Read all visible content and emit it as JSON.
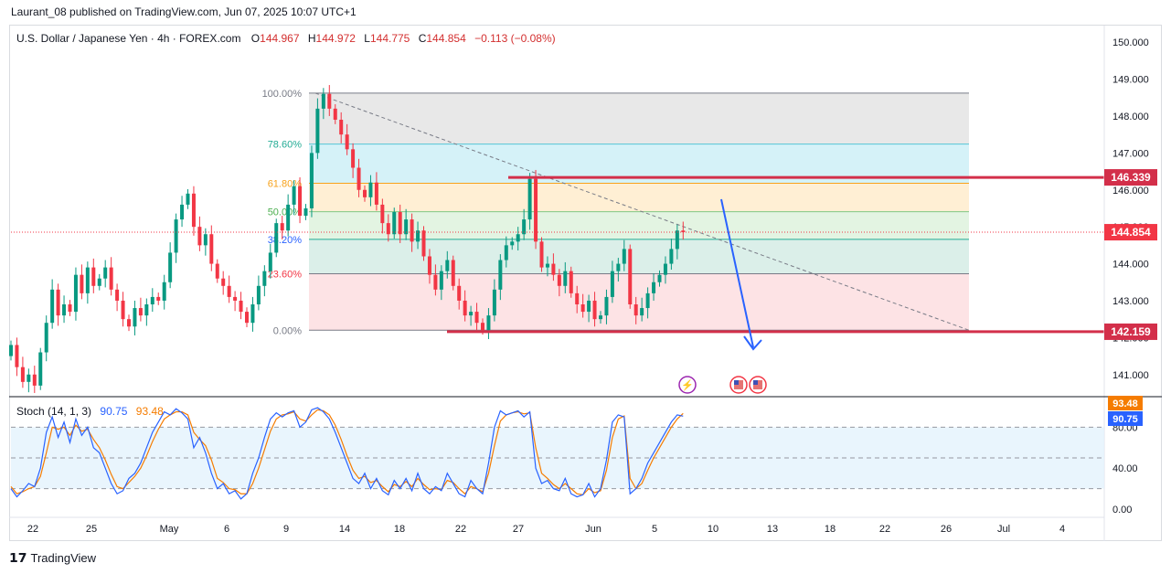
{
  "header": {
    "published": "Laurant_08 published on TradingView.com, Jun 07, 2025 10:07 UTC+1"
  },
  "legend": {
    "symbol": "U.S. Dollar / Japanese Yen · 4h · FOREX.com",
    "o_label": "O",
    "o_value": "144.967",
    "h_label": "H",
    "h_value": "144.972",
    "l_label": "L",
    "l_value": "144.775",
    "c_label": "C",
    "c_value": "144.854",
    "change": "−0.113 (−0.08%)"
  },
  "stoch": {
    "label": "Stoch (14, 1, 3)",
    "k_value": "90.75",
    "d_value": "93.48"
  },
  "footer": {
    "brand": "TradingView"
  },
  "colors": {
    "up": "#089981",
    "down": "#f23645",
    "level_line": "#d32f4a",
    "k_line": "#2962ff",
    "d_line": "#f57c00",
    "arrow": "#2962ff"
  },
  "chart_data": {
    "type": "candlestick",
    "price_axis": {
      "ticks": [
        "150.000",
        "149.000",
        "148.000",
        "147.000",
        "146.000",
        "145.000",
        "144.000",
        "143.000",
        "142.000",
        "141.000"
      ],
      "ylim": [
        140.4,
        150.4
      ]
    },
    "x_ticks": [
      "22",
      "25",
      "May",
      "6",
      "9",
      "14",
      "18",
      "22",
      "27",
      "Jun",
      "5",
      "10",
      "13",
      "18",
      "22",
      "26",
      "Jul",
      "4"
    ],
    "fib_levels": [
      {
        "label": "100.00%",
        "price": 148.62,
        "color": "#e0e0e0"
      },
      {
        "label": "78.60%",
        "price": 147.24,
        "color": "#c7eef5"
      },
      {
        "label": "61.80%",
        "price": 146.18,
        "color": "#ffe9c6"
      },
      {
        "label": "50.00%",
        "price": 145.41,
        "color": "#d9f0d8"
      },
      {
        "label": "38.20%",
        "price": 144.66,
        "color": "#cfe9e2"
      },
      {
        "label": "23.60%",
        "price": 143.73,
        "color": "#fcd9dc"
      },
      {
        "label": "0.00%",
        "price": 142.2,
        "color": "#fcd9dc"
      }
    ],
    "levels": [
      {
        "label": "146.339",
        "price": 146.339
      },
      {
        "label": "142.159",
        "price": 142.159
      }
    ],
    "current_price": {
      "label": "144.854",
      "price": 144.854
    },
    "stoch_axis": {
      "ticks": [
        "80.00",
        "40.00",
        "0.00"
      ],
      "ylim": [
        -8,
        108
      ],
      "bands": [
        80,
        50,
        20
      ]
    },
    "stoch_badges": [
      {
        "label": "93.48",
        "value": 93.48,
        "color": "#f57c00"
      },
      {
        "label": "90.75",
        "value": 90.75,
        "color": "#2962ff"
      }
    ],
    "closes": [
      141.8,
      141.2,
      140.8,
      141.0,
      140.7,
      141.6,
      142.4,
      143.3,
      142.6,
      142.9,
      142.7,
      143.7,
      143.2,
      143.9,
      143.4,
      143.6,
      143.9,
      143.3,
      143.0,
      142.5,
      142.3,
      142.8,
      142.6,
      142.9,
      143.1,
      143.0,
      143.5,
      144.3,
      145.2,
      145.6,
      145.9,
      145.0,
      144.5,
      144.8,
      144.0,
      143.6,
      143.4,
      143.1,
      143.0,
      142.7,
      142.4,
      142.9,
      143.4,
      143.8,
      144.3,
      145.1,
      144.9,
      145.6,
      146.1,
      145.3,
      145.5,
      147.0,
      148.2,
      148.6,
      148.2,
      147.9,
      147.5,
      147.1,
      146.6,
      146.0,
      145.8,
      146.2,
      145.6,
      145.1,
      144.8,
      145.4,
      144.8,
      145.2,
      144.6,
      144.9,
      144.2,
      143.7,
      143.3,
      143.8,
      144.1,
      143.4,
      143.0,
      142.6,
      142.7,
      142.4,
      142.2,
      142.6,
      143.3,
      144.1,
      144.5,
      144.6,
      144.8,
      145.2,
      146.3,
      144.6,
      143.9,
      144.0,
      143.7,
      143.4,
      143.8,
      143.2,
      142.9,
      142.7,
      143.0,
      142.5,
      142.6,
      143.1,
      143.8,
      144.0,
      144.4,
      142.9,
      142.6,
      142.8,
      143.2,
      143.5,
      143.7,
      144.0,
      144.4,
      144.9,
      144.854
    ],
    "stoch_k": [
      20,
      12,
      18,
      25,
      22,
      40,
      75,
      90,
      70,
      85,
      65,
      88,
      72,
      80,
      60,
      55,
      40,
      25,
      15,
      18,
      30,
      35,
      45,
      60,
      75,
      85,
      95,
      92,
      98,
      94,
      88,
      60,
      70,
      55,
      35,
      20,
      25,
      15,
      18,
      10,
      15,
      35,
      50,
      70,
      88,
      94,
      90,
      94,
      96,
      80,
      85,
      97,
      99,
      95,
      88,
      75,
      60,
      45,
      30,
      25,
      35,
      20,
      30,
      18,
      14,
      28,
      20,
      30,
      18,
      35,
      20,
      15,
      22,
      18,
      35,
      25,
      15,
      12,
      28,
      20,
      15,
      45,
      80,
      96,
      92,
      94,
      96,
      90,
      95,
      40,
      25,
      28,
      20,
      18,
      30,
      15,
      12,
      14,
      25,
      12,
      20,
      48,
      85,
      92,
      90,
      15,
      20,
      30,
      45,
      55,
      65,
      75,
      85,
      92,
      90.75
    ],
    "stoch_d": [
      22,
      15,
      17,
      20,
      22,
      32,
      55,
      80,
      78,
      80,
      72,
      82,
      76,
      78,
      68,
      60,
      48,
      34,
      22,
      20,
      26,
      32,
      40,
      52,
      66,
      78,
      88,
      92,
      95,
      95,
      92,
      75,
      68,
      62,
      48,
      30,
      26,
      20,
      19,
      15,
      15,
      25,
      40,
      58,
      76,
      88,
      92,
      93,
      95,
      88,
      86,
      92,
      97,
      96,
      92,
      82,
      68,
      52,
      38,
      30,
      32,
      26,
      28,
      22,
      17,
      24,
      22,
      27,
      22,
      30,
      24,
      19,
      20,
      19,
      28,
      26,
      20,
      15,
      22,
      20,
      17,
      35,
      62,
      86,
      92,
      94,
      95,
      93,
      94,
      60,
      35,
      30,
      24,
      20,
      25,
      20,
      15,
      14,
      20,
      16,
      18,
      38,
      70,
      88,
      91,
      30,
      20,
      25,
      38,
      50,
      60,
      70,
      80,
      88,
      93.48
    ]
  }
}
